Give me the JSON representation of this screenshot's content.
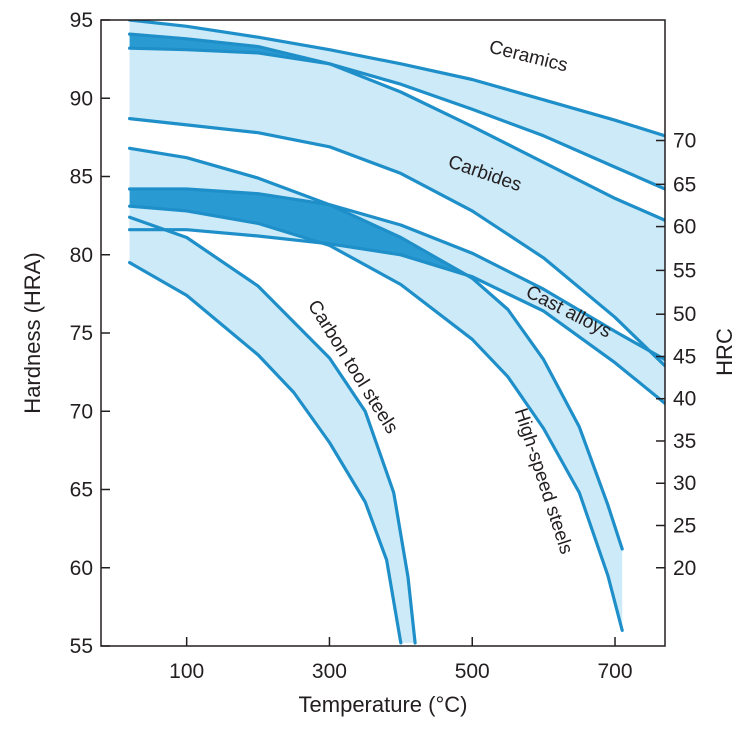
{
  "chart_data": {
    "type": "area",
    "title": "",
    "xlabel": "Temperature (°C)",
    "ylabel": "Hardness (HRA)",
    "y2label": "HRC",
    "xlim": [
      -20,
      770
    ],
    "ylim": [
      55,
      95
    ],
    "xticks": [
      100,
      300,
      500,
      700
    ],
    "yticks": [
      55,
      60,
      65,
      70,
      75,
      80,
      85,
      90,
      95
    ],
    "y2ticks": [
      {
        "label": "20",
        "hra": 60.0
      },
      {
        "label": "25",
        "hra": 62.7
      },
      {
        "label": "30",
        "hra": 65.4
      },
      {
        "label": "35",
        "hra": 68.1
      },
      {
        "label": "40",
        "hra": 70.8
      },
      {
        "label": "45",
        "hra": 73.5
      },
      {
        "label": "50",
        "hra": 76.2
      },
      {
        "label": "55",
        "hra": 79.0
      },
      {
        "label": "60",
        "hra": 81.8
      },
      {
        "label": "65",
        "hra": 84.5
      },
      {
        "label": "70",
        "hra": 87.3
      }
    ],
    "grid": false,
    "colors": {
      "band_fill": "#cdeaf8",
      "band_line": "#1e8fc9",
      "overlap_fill": "#2a9ad2",
      "text": "#231f20"
    },
    "series": [
      {
        "name": "Ceramics",
        "upper": [
          [
            20,
            95
          ],
          [
            100,
            94.6
          ],
          [
            200,
            93.9
          ],
          [
            300,
            93.1
          ],
          [
            400,
            92.2
          ],
          [
            500,
            91.2
          ],
          [
            600,
            89.9
          ],
          [
            700,
            88.6
          ],
          [
            770,
            87.6
          ]
        ],
        "lower": [
          [
            20,
            93.2
          ],
          [
            100,
            93.1
          ],
          [
            200,
            92.9
          ],
          [
            300,
            92.2
          ],
          [
            400,
            90.9
          ],
          [
            500,
            89.3
          ],
          [
            600,
            87.6
          ],
          [
            700,
            85.6
          ],
          [
            770,
            84.2
          ]
        ]
      },
      {
        "name": "Carbides",
        "upper": [
          [
            20,
            94.1
          ],
          [
            100,
            93.8
          ],
          [
            200,
            93.3
          ],
          [
            300,
            92.2
          ],
          [
            400,
            90.4
          ],
          [
            500,
            88.2
          ],
          [
            600,
            85.9
          ],
          [
            700,
            83.6
          ],
          [
            770,
            82.2
          ]
        ],
        "lower": [
          [
            20,
            88.7
          ],
          [
            100,
            88.3
          ],
          [
            200,
            87.8
          ],
          [
            300,
            86.9
          ],
          [
            400,
            85.2
          ],
          [
            500,
            82.8
          ],
          [
            600,
            79.8
          ],
          [
            700,
            76.0
          ],
          [
            770,
            72.9
          ]
        ]
      },
      {
        "name": "Cast alloys",
        "upper": [
          [
            20,
            84.2
          ],
          [
            100,
            84.2
          ],
          [
            200,
            83.9
          ],
          [
            300,
            83.2
          ],
          [
            400,
            81.9
          ],
          [
            500,
            80.1
          ],
          [
            600,
            77.8
          ],
          [
            700,
            75.1
          ],
          [
            770,
            73.3
          ]
        ],
        "lower": [
          [
            20,
            81.6
          ],
          [
            100,
            81.6
          ],
          [
            200,
            81.2
          ],
          [
            300,
            80.7
          ],
          [
            400,
            80.0
          ],
          [
            500,
            78.6
          ],
          [
            600,
            76.4
          ],
          [
            700,
            73.1
          ],
          [
            770,
            70.5
          ]
        ]
      },
      {
        "name": "High-speed steels",
        "upper": [
          [
            20,
            86.8
          ],
          [
            100,
            86.2
          ],
          [
            200,
            84.9
          ],
          [
            300,
            83.2
          ],
          [
            400,
            81.1
          ],
          [
            500,
            78.5
          ],
          [
            550,
            76.5
          ],
          [
            600,
            73.3
          ],
          [
            650,
            69.0
          ],
          [
            690,
            64.0
          ],
          [
            710,
            61.2
          ]
        ],
        "lower": [
          [
            20,
            83.1
          ],
          [
            100,
            82.8
          ],
          [
            200,
            82.0
          ],
          [
            300,
            80.6
          ],
          [
            400,
            78.1
          ],
          [
            500,
            74.6
          ],
          [
            550,
            72.2
          ],
          [
            600,
            68.9
          ],
          [
            650,
            64.8
          ],
          [
            690,
            59.5
          ],
          [
            710,
            56.0
          ]
        ]
      },
      {
        "name": "Carbon tool steels",
        "upper": [
          [
            20,
            82.4
          ],
          [
            100,
            81.1
          ],
          [
            200,
            78.0
          ],
          [
            300,
            73.4
          ],
          [
            350,
            70.0
          ],
          [
            390,
            64.8
          ],
          [
            410,
            59.4
          ],
          [
            420,
            55.2
          ]
        ],
        "lower": [
          [
            20,
            79.5
          ],
          [
            100,
            77.4
          ],
          [
            200,
            73.6
          ],
          [
            250,
            71.2
          ],
          [
            300,
            68.0
          ],
          [
            350,
            64.2
          ],
          [
            380,
            60.5
          ],
          [
            400,
            55.2
          ]
        ]
      }
    ],
    "labels": [
      "Ceramics",
      "Carbides",
      "Cast alloys",
      "High-speed steels",
      "Carbon tool steels"
    ]
  }
}
